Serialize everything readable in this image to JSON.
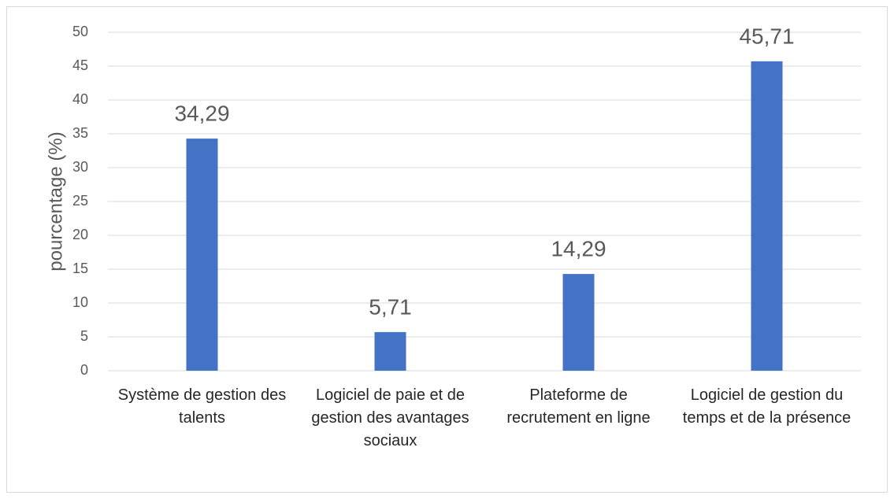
{
  "chart_data": {
    "type": "bar",
    "ylabel": "pourcentage (%)",
    "categories": [
      "Système de gestion des talents",
      "Logiciel de paie et de gestion des avantages sociaux",
      "Plateforme de recrutement en ligne",
      "Logiciel de gestion du temps et de la présence"
    ],
    "values": [
      34.29,
      5.71,
      14.29,
      45.71
    ],
    "value_labels": [
      "34,29",
      "5,71",
      "14,29",
      "45,71"
    ],
    "color": "#4472c4",
    "ylim": [
      0,
      50
    ],
    "yticks": [
      0,
      5,
      10,
      15,
      20,
      25,
      30,
      35,
      40,
      45,
      50
    ],
    "grid": true
  }
}
